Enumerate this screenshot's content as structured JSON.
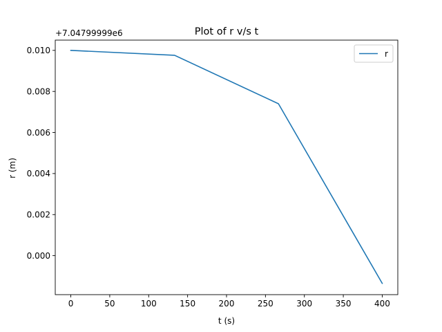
{
  "chart_data": {
    "type": "line",
    "title": "Plot of r v/s t",
    "xlabel": "t (s)",
    "ylabel": "r (m)",
    "offset_label": "+7.04799999e6",
    "xlim": [
      -20,
      420
    ],
    "ylim": [
      -0.0019,
      0.0105
    ],
    "x_ticks": [
      0,
      50,
      100,
      150,
      200,
      250,
      300,
      350,
      400
    ],
    "x_tick_labels": [
      "0",
      "50",
      "100",
      "150",
      "200",
      "250",
      "300",
      "350",
      "400"
    ],
    "y_ticks": [
      0.0,
      0.002,
      0.004,
      0.006,
      0.008,
      0.01
    ],
    "y_tick_labels": [
      "0.000",
      "0.002",
      "0.004",
      "0.006",
      "0.008",
      "0.010"
    ],
    "grid": false,
    "legend_position": "top-right",
    "series": [
      {
        "name": "r",
        "color": "#1f77b4",
        "x": [
          0,
          133.3,
          266.7,
          400
        ],
        "y": [
          0.01,
          0.00976,
          0.0074,
          -0.00135
        ]
      }
    ]
  }
}
